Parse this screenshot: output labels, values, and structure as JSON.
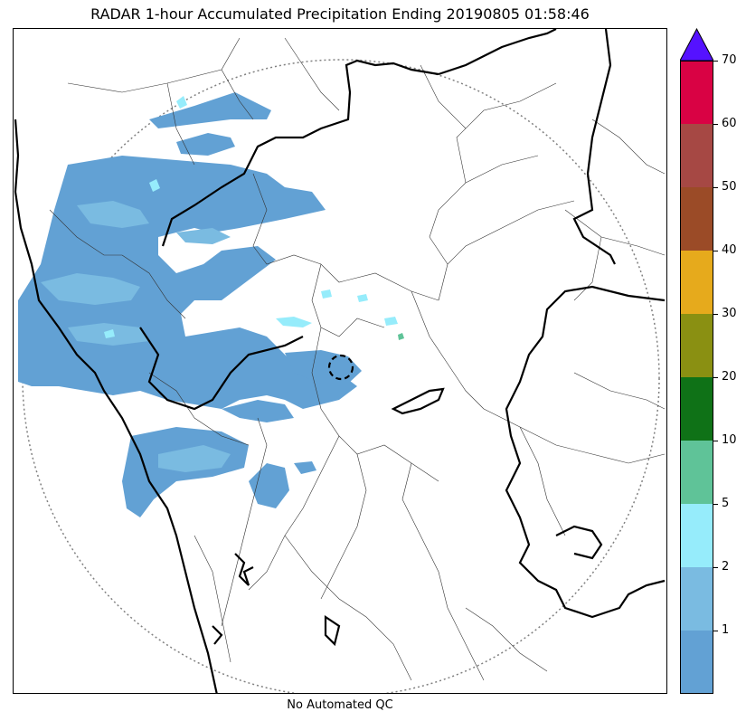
{
  "title": "RADAR 1-hour Accumulated Precipitation Ending 20190805 01:58:46",
  "footer_note": "No Automated QC",
  "colorbar": {
    "levels": [
      {
        "label": "",
        "color": "#62a1d4"
      },
      {
        "label": "1",
        "color": "#7abbe1"
      },
      {
        "label": "2",
        "color": "#96ecfb"
      },
      {
        "label": "5",
        "color": "#5fc398"
      },
      {
        "label": "10",
        "color": "#0f7217"
      },
      {
        "label": "20",
        "color": "#8a9012"
      },
      {
        "label": "30",
        "color": "#e6aa1c"
      },
      {
        "label": "40",
        "color": "#9b4b27"
      },
      {
        "label": "50",
        "color": "#a64844"
      },
      {
        "label": "60",
        "color": "#d90244"
      }
    ],
    "top_label": "70",
    "extend_color": "#5512ff"
  }
}
